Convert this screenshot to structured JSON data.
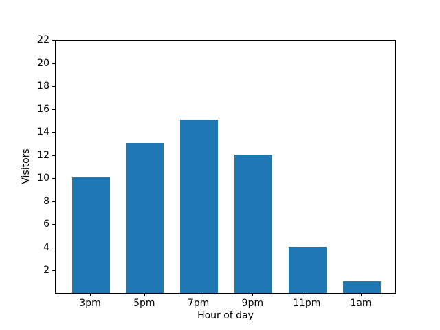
{
  "chart_data": {
    "type": "bar",
    "categories": [
      "3pm",
      "5pm",
      "7pm",
      "9pm",
      "11pm",
      "1am"
    ],
    "values": [
      10,
      13,
      15,
      12,
      4,
      1
    ],
    "title": "",
    "xlabel": "Hour of day",
    "ylabel": "Visitors",
    "ylim": [
      0,
      22
    ],
    "yticks": [
      2,
      4,
      6,
      8,
      10,
      12,
      14,
      16,
      18,
      20,
      22
    ],
    "bar_color": "#1f77b4",
    "spine_color": "#000000",
    "text_color": "#000000",
    "background_color": "#ffffff",
    "grid": false,
    "legend": null
  }
}
